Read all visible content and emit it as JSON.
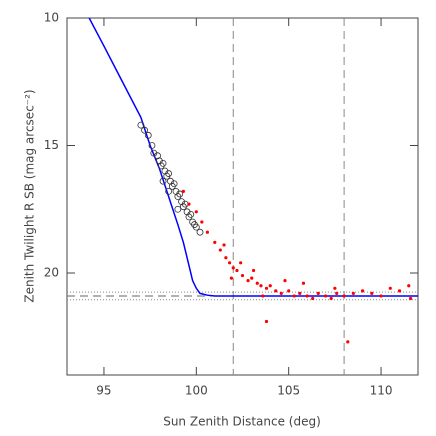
{
  "chart_data": {
    "type": "scatter",
    "xlabel": "Sun Zenith Distance (deg)",
    "ylabel": "Zenith Twilight R SB (mag arcsec⁻²)",
    "xlim": [
      93,
      112
    ],
    "xticks": [
      95,
      100,
      105,
      110
    ],
    "ylim": [
      24,
      10
    ],
    "yticks": [
      10,
      15,
      20
    ],
    "vertical_dashed": [
      102,
      108
    ],
    "horizontal_dotted": [
      20.75,
      21.05
    ],
    "horizontal_dashed": [
      20.9
    ],
    "series": [
      {
        "style": "line",
        "color": "#0000ff",
        "x": [
          94.2,
          95,
          96,
          97,
          97.5,
          98,
          98.5,
          99,
          99.3,
          99.6,
          99.8,
          100,
          100.2,
          100.6,
          101,
          102,
          112
        ],
        "values": [
          10,
          11.1,
          12.5,
          13.9,
          15,
          15.9,
          17,
          18.1,
          18.8,
          19.7,
          20.3,
          20.6,
          20.8,
          20.87,
          20.9,
          20.9,
          20.9
        ]
      },
      {
        "style": "open",
        "color": "#333333",
        "x": [
          97.0,
          97.2,
          97.4,
          97.6,
          97.7,
          97.9,
          98.0,
          98.1,
          98.2,
          98.3,
          98.4,
          98.5,
          98.6,
          98.7,
          98.8,
          98.9,
          99.0,
          99.1,
          99.2,
          99.3,
          99.4,
          99.5,
          99.6,
          99.7,
          99.8,
          99.9,
          100.0,
          100.2,
          98.2,
          98.5,
          99.0
        ],
        "values": [
          14.2,
          14.4,
          14.6,
          15.0,
          15.3,
          15.4,
          15.6,
          15.8,
          15.7,
          16.0,
          16.2,
          16.1,
          16.4,
          16.6,
          16.5,
          16.8,
          17.0,
          16.9,
          17.2,
          17.4,
          17.3,
          17.6,
          17.8,
          17.7,
          18.0,
          18.1,
          18.2,
          18.4,
          16.4,
          16.8,
          17.5
        ]
      },
      {
        "style": "filled",
        "color": "#ff0000",
        "x": [
          99.3,
          99.6,
          100.0,
          100.3,
          100.6,
          101.0,
          101.3,
          101.6,
          101.8,
          102.0,
          102.2,
          102.5,
          102.8,
          103.0,
          103.3,
          103.5,
          103.8,
          104.0,
          104.3,
          104.6,
          105.0,
          105.3,
          105.6,
          106.0,
          106.3,
          106.6,
          107.0,
          107.3,
          107.6,
          108.0,
          108.2,
          108.5,
          109.0,
          109.5,
          110.0,
          110.5,
          111.0,
          111.5,
          111.6,
          103.8,
          101.5,
          102.4,
          103.1,
          104.8,
          105.8,
          101.9,
          103.6,
          107.5
        ],
        "values": [
          16.8,
          17.3,
          17.6,
          18.0,
          18.4,
          18.8,
          19.1,
          19.4,
          19.6,
          19.8,
          19.9,
          20.1,
          20.3,
          20.2,
          20.4,
          20.5,
          20.6,
          20.5,
          20.7,
          20.8,
          20.7,
          20.9,
          20.8,
          20.9,
          21.0,
          20.8,
          20.9,
          21.0,
          20.8,
          20.9,
          22.7,
          20.8,
          20.7,
          20.8,
          20.9,
          20.6,
          20.7,
          20.5,
          21.0,
          21.9,
          18.9,
          19.6,
          19.9,
          20.3,
          20.4,
          20.2,
          20.9,
          20.6
        ]
      }
    ]
  }
}
